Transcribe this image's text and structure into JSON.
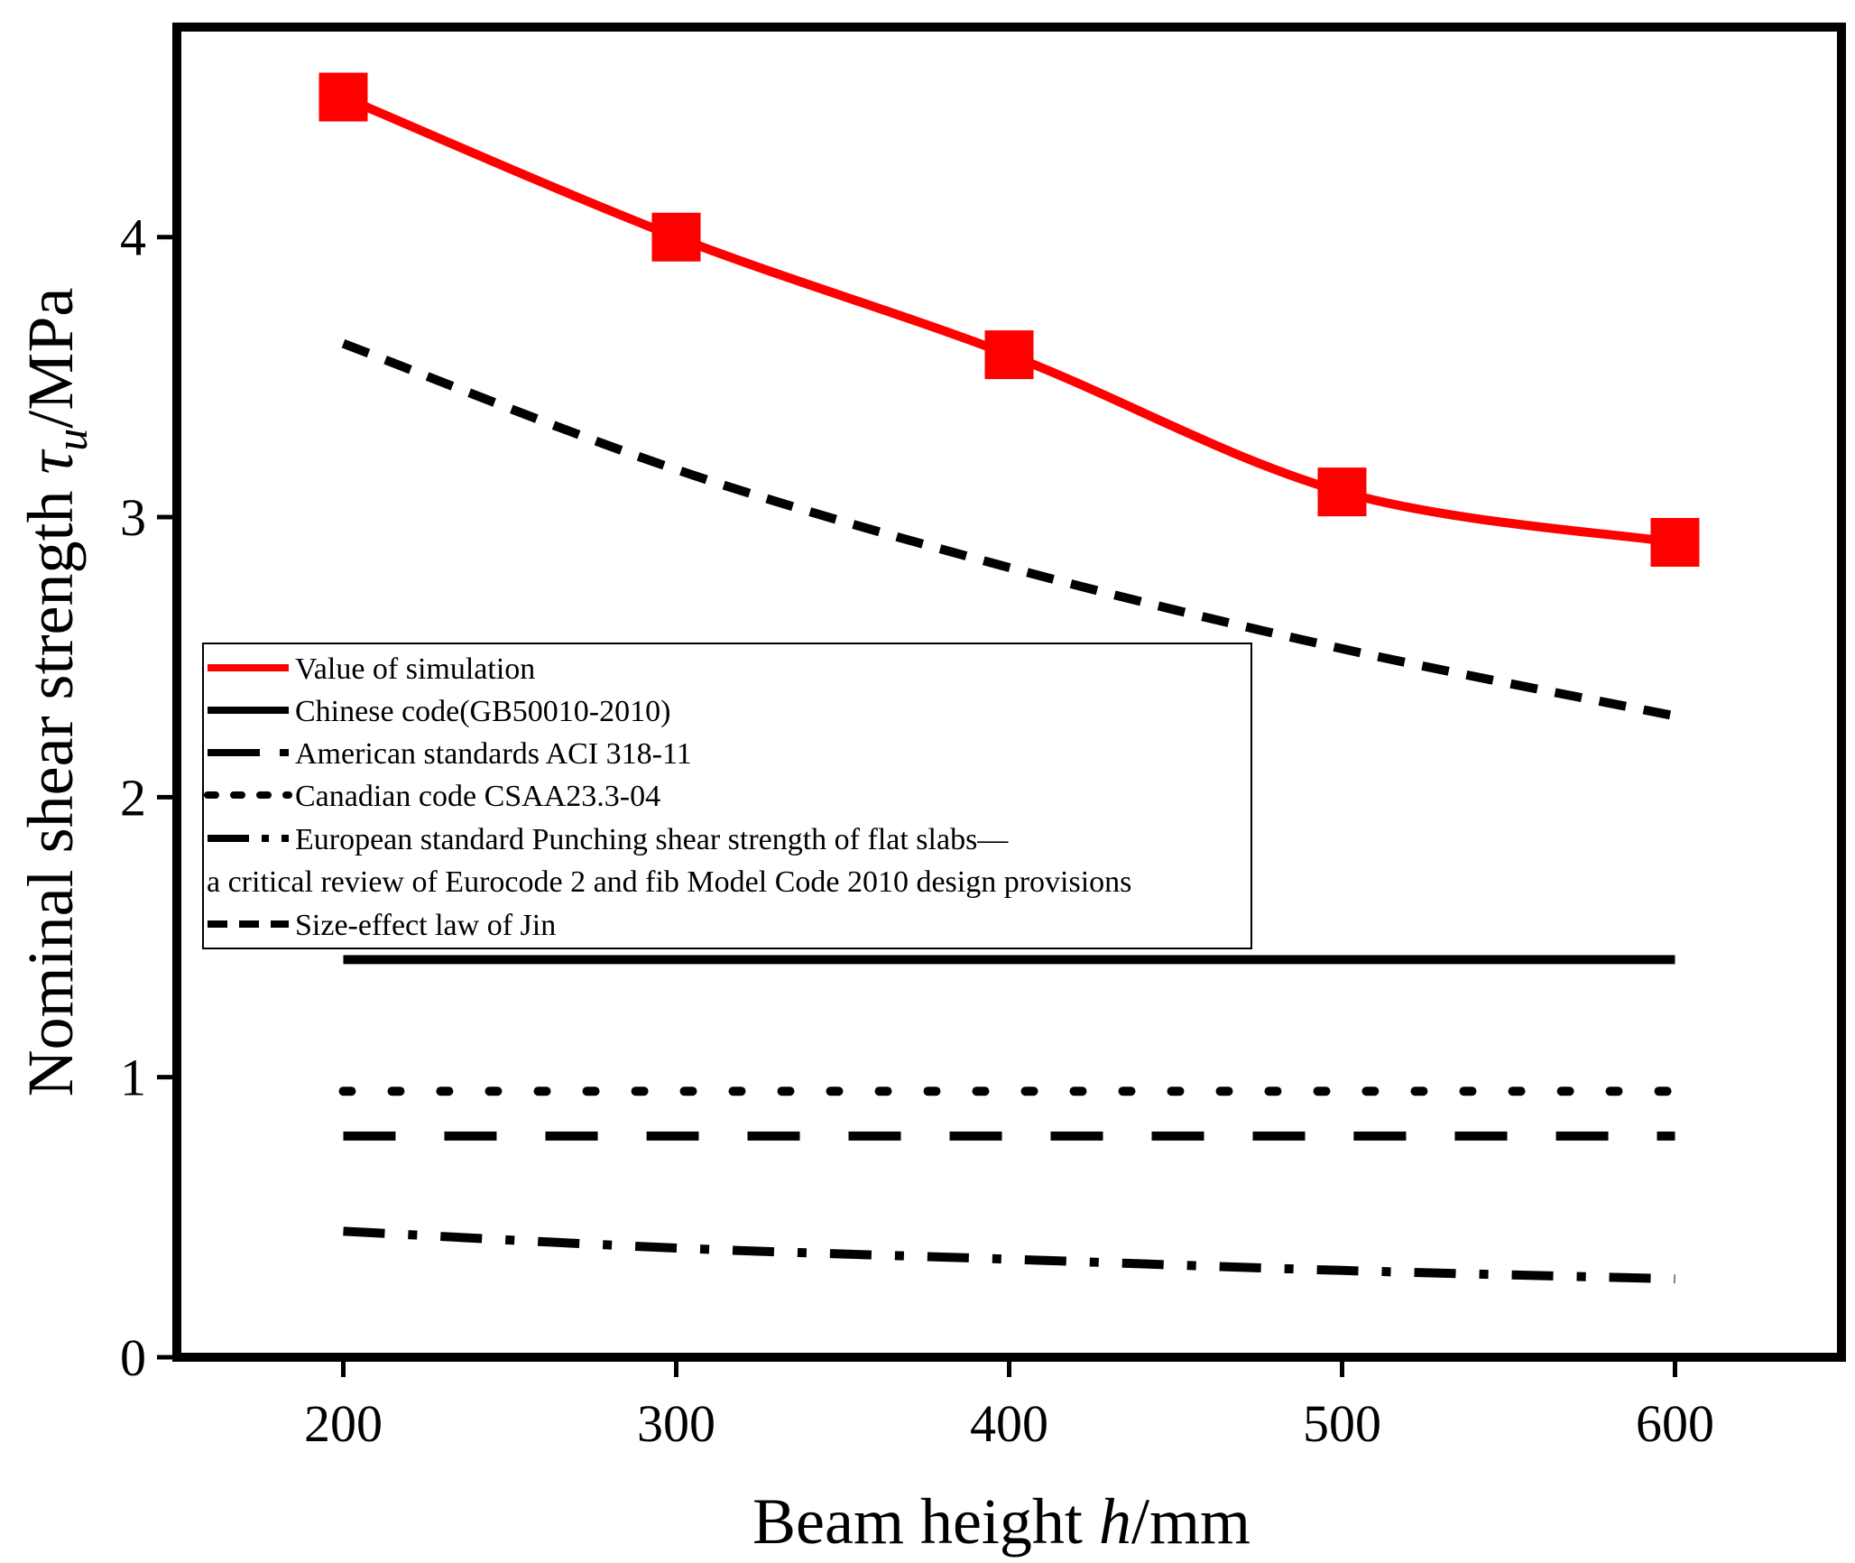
{
  "chart_data": {
    "type": "line",
    "xlabel": "Beam height h/mm",
    "xlabel_parts": [
      "Beam height ",
      "h",
      "/mm"
    ],
    "ylabel": "Nominal shear strength τu/MPa",
    "ylabel_parts": [
      "Nominal shear strength ",
      "τ",
      "u",
      "/MPa"
    ],
    "xlim": [
      150,
      650
    ],
    "ylim": [
      0,
      4.75
    ],
    "xticks": [
      200,
      300,
      400,
      500,
      600
    ],
    "yticks": [
      0,
      1,
      2,
      3,
      4
    ],
    "grid": false,
    "legend_position": "center-left",
    "series": [
      {
        "name": "Value of simulation",
        "style": "solid-red-markers",
        "color": "#ff0000",
        "x": [
          200,
          300,
          400,
          500,
          600
        ],
        "values": [
          4.5,
          4.0,
          3.58,
          3.09,
          2.91
        ]
      },
      {
        "name": "Chinese code(GB50010-2010)",
        "style": "solid",
        "color": "#000000",
        "x": [
          200,
          300,
          400,
          500,
          600
        ],
        "values": [
          1.42,
          1.42,
          1.42,
          1.42,
          1.42
        ]
      },
      {
        "name": "American standards ACI 318-11",
        "style": "long-dash",
        "color": "#000000",
        "x": [
          200,
          300,
          400,
          500,
          600
        ],
        "values": [
          0.79,
          0.79,
          0.79,
          0.79,
          0.79
        ]
      },
      {
        "name": "Canadian code CSAA23.3-04",
        "style": "dot",
        "color": "#000000",
        "x": [
          200,
          300,
          400,
          500,
          600
        ],
        "values": [
          0.95,
          0.95,
          0.95,
          0.95,
          0.95
        ]
      },
      {
        "name": "European standard Punching shear strength of flat slabs—",
        "name_line2": "a critical review of Eurocode 2 and fib Model Code 2010 design provisions",
        "style": "dash-dot",
        "color": "#000000",
        "x": [
          200,
          300,
          400,
          500,
          600
        ],
        "values": [
          0.45,
          0.39,
          0.35,
          0.31,
          0.28
        ]
      },
      {
        "name": "Size-effect law of Jin",
        "style": "short-dash",
        "color": "#000000",
        "x": [
          200,
          300,
          400,
          500,
          600
        ],
        "values": [
          3.62,
          3.17,
          2.82,
          2.53,
          2.29
        ]
      }
    ]
  }
}
